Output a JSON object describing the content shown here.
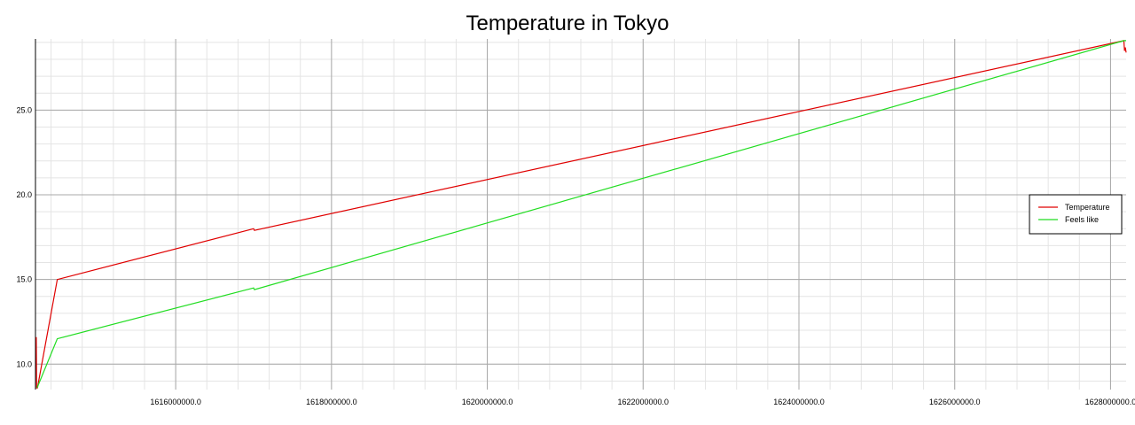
{
  "chart_data": {
    "type": "line",
    "title": "Temperature in Tokyo",
    "xlabel": "",
    "ylabel": "",
    "xlim": [
      1614200000,
      1628200000
    ],
    "ylim": [
      8.5,
      29.2
    ],
    "grid": true,
    "legend_position": "right",
    "x_ticks": [
      1616000000,
      1618000000,
      1620000000,
      1622000000,
      1624000000,
      1626000000,
      1628000000
    ],
    "x_tick_labels": [
      "1616000000.0",
      "1618000000.0",
      "1620000000.0",
      "1622000000.0",
      "1624000000.0",
      "1626000000.0",
      "1628000000.0"
    ],
    "y_ticks": [
      10,
      15,
      20,
      25
    ],
    "y_tick_labels": [
      "10.0",
      "15.0",
      "20.0",
      "25.0"
    ],
    "series": [
      {
        "name": "Temperature",
        "color": "#e00000",
        "x": [
          1614210000,
          1614215000,
          1614225000,
          1614480000,
          1617000000,
          1617010000,
          1628170000,
          1628180000,
          1628190000,
          1628200000
        ],
        "y": [
          11.6,
          8.6,
          8.6,
          15.0,
          18.0,
          17.9,
          29.1,
          28.5,
          28.7,
          28.4
        ]
      },
      {
        "name": "Feels like",
        "color": "#22dd22",
        "x": [
          1614220000,
          1614480000,
          1617000000,
          1617010000,
          1628170000,
          1628200000
        ],
        "y": [
          8.6,
          11.5,
          14.5,
          14.4,
          29.1,
          29.1
        ]
      }
    ]
  }
}
